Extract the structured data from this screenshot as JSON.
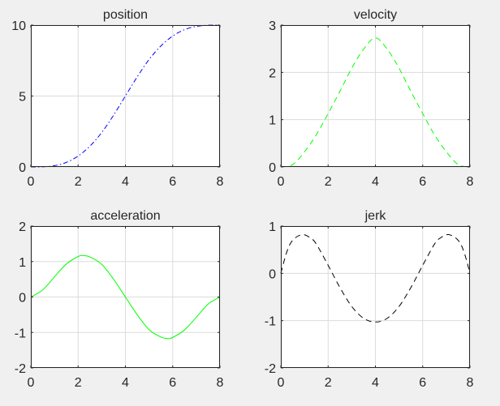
{
  "figure": {
    "background": "#f0f0f0"
  },
  "chart_data": [
    {
      "type": "line",
      "title": "position",
      "xlabel": "",
      "ylabel": "",
      "xlim": [
        0,
        8
      ],
      "ylim": [
        0,
        10
      ],
      "xticks": [
        0,
        2,
        4,
        6,
        8
      ],
      "yticks": [
        0,
        5,
        10
      ],
      "grid": true,
      "series": [
        {
          "name": "position",
          "color": "#0000ff",
          "style": "dash-dot",
          "x": [
            0,
            0.5,
            1,
            1.5,
            2,
            2.5,
            3,
            3.5,
            4,
            4.5,
            5,
            5.5,
            6,
            6.5,
            7,
            7.5,
            8
          ],
          "y": [
            0,
            0.01,
            0.09,
            0.32,
            0.77,
            1.47,
            2.43,
            3.65,
            5.0,
            6.35,
            7.57,
            8.53,
            9.23,
            9.68,
            9.91,
            9.99,
            10
          ]
        }
      ]
    },
    {
      "type": "line",
      "title": "velocity",
      "xlabel": "",
      "ylabel": "",
      "xlim": [
        0,
        8
      ],
      "ylim": [
        0,
        3
      ],
      "xticks": [
        0,
        2,
        4,
        6,
        8
      ],
      "yticks": [
        0,
        1,
        2,
        3
      ],
      "grid": true,
      "series": [
        {
          "name": "velocity",
          "color": "#00ff00",
          "style": "dashed",
          "x": [
            0,
            0.5,
            1,
            1.5,
            2,
            2.5,
            3,
            3.5,
            4,
            4.5,
            5,
            5.5,
            6,
            6.5,
            7,
            7.5,
            8
          ],
          "y": [
            0,
            0.05,
            0.32,
            0.68,
            1.13,
            1.6,
            2.09,
            2.49,
            2.73,
            2.49,
            2.09,
            1.6,
            1.13,
            0.68,
            0.32,
            0.05,
            0
          ]
        }
      ]
    },
    {
      "type": "line",
      "title": "acceleration",
      "xlabel": "",
      "ylabel": "",
      "xlim": [
        0,
        8
      ],
      "ylim": [
        -2,
        2
      ],
      "xticks": [
        0,
        2,
        4,
        6,
        8
      ],
      "yticks": [
        -2,
        -1,
        0,
        1,
        2
      ],
      "grid": true,
      "series": [
        {
          "name": "acceleration",
          "color": "#00ff00",
          "style": "solid",
          "x": [
            0,
            0.5,
            1,
            1.5,
            2,
            2.2,
            2.5,
            3,
            3.5,
            4,
            4.5,
            5,
            5.5,
            5.8,
            6,
            6.5,
            7,
            7.5,
            8
          ],
          "y": [
            0,
            0.2,
            0.57,
            0.93,
            1.14,
            1.17,
            1.13,
            0.92,
            0.5,
            0,
            -0.5,
            -0.92,
            -1.13,
            -1.17,
            -1.14,
            -0.93,
            -0.57,
            -0.2,
            0
          ]
        }
      ]
    },
    {
      "type": "line",
      "title": "jerk",
      "xlabel": "",
      "ylabel": "",
      "xlim": [
        0,
        8
      ],
      "ylim": [
        -2,
        1
      ],
      "xticks": [
        0,
        2,
        4,
        6,
        8
      ],
      "yticks": [
        -2,
        -1,
        0,
        1
      ],
      "grid": true,
      "series": [
        {
          "name": "jerk",
          "color": "#000000",
          "style": "dashed",
          "x": [
            0,
            0.25,
            0.5,
            0.9,
            1.25,
            1.5,
            2,
            2.5,
            3,
            3.5,
            4,
            4.5,
            5,
            5.5,
            6,
            6.5,
            6.75,
            7.1,
            7.5,
            7.75,
            8
          ],
          "y": [
            0,
            0.45,
            0.7,
            0.82,
            0.75,
            0.62,
            0.17,
            -0.3,
            -0.7,
            -0.95,
            -1.03,
            -0.95,
            -0.7,
            -0.3,
            0.17,
            0.62,
            0.75,
            0.82,
            0.7,
            0.45,
            0
          ]
        }
      ]
    }
  ]
}
